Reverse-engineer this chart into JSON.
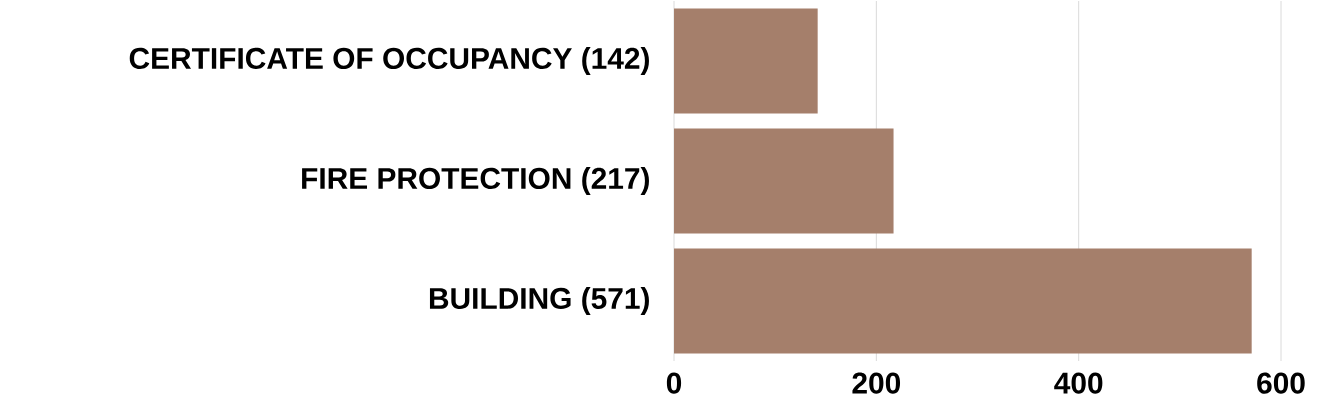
{
  "chart_data": {
    "type": "bar",
    "orientation": "horizontal",
    "categories": [
      "CERTIFICATE OF OCCUPANCY (142)",
      "FIRE PROTECTION (217)",
      "BUILDING (571)"
    ],
    "values": [
      142,
      217,
      571
    ],
    "color": "#a57f6b",
    "xlim": [
      0,
      600
    ],
    "xticks": [
      0,
      200,
      400,
      600
    ],
    "grid": "x"
  }
}
